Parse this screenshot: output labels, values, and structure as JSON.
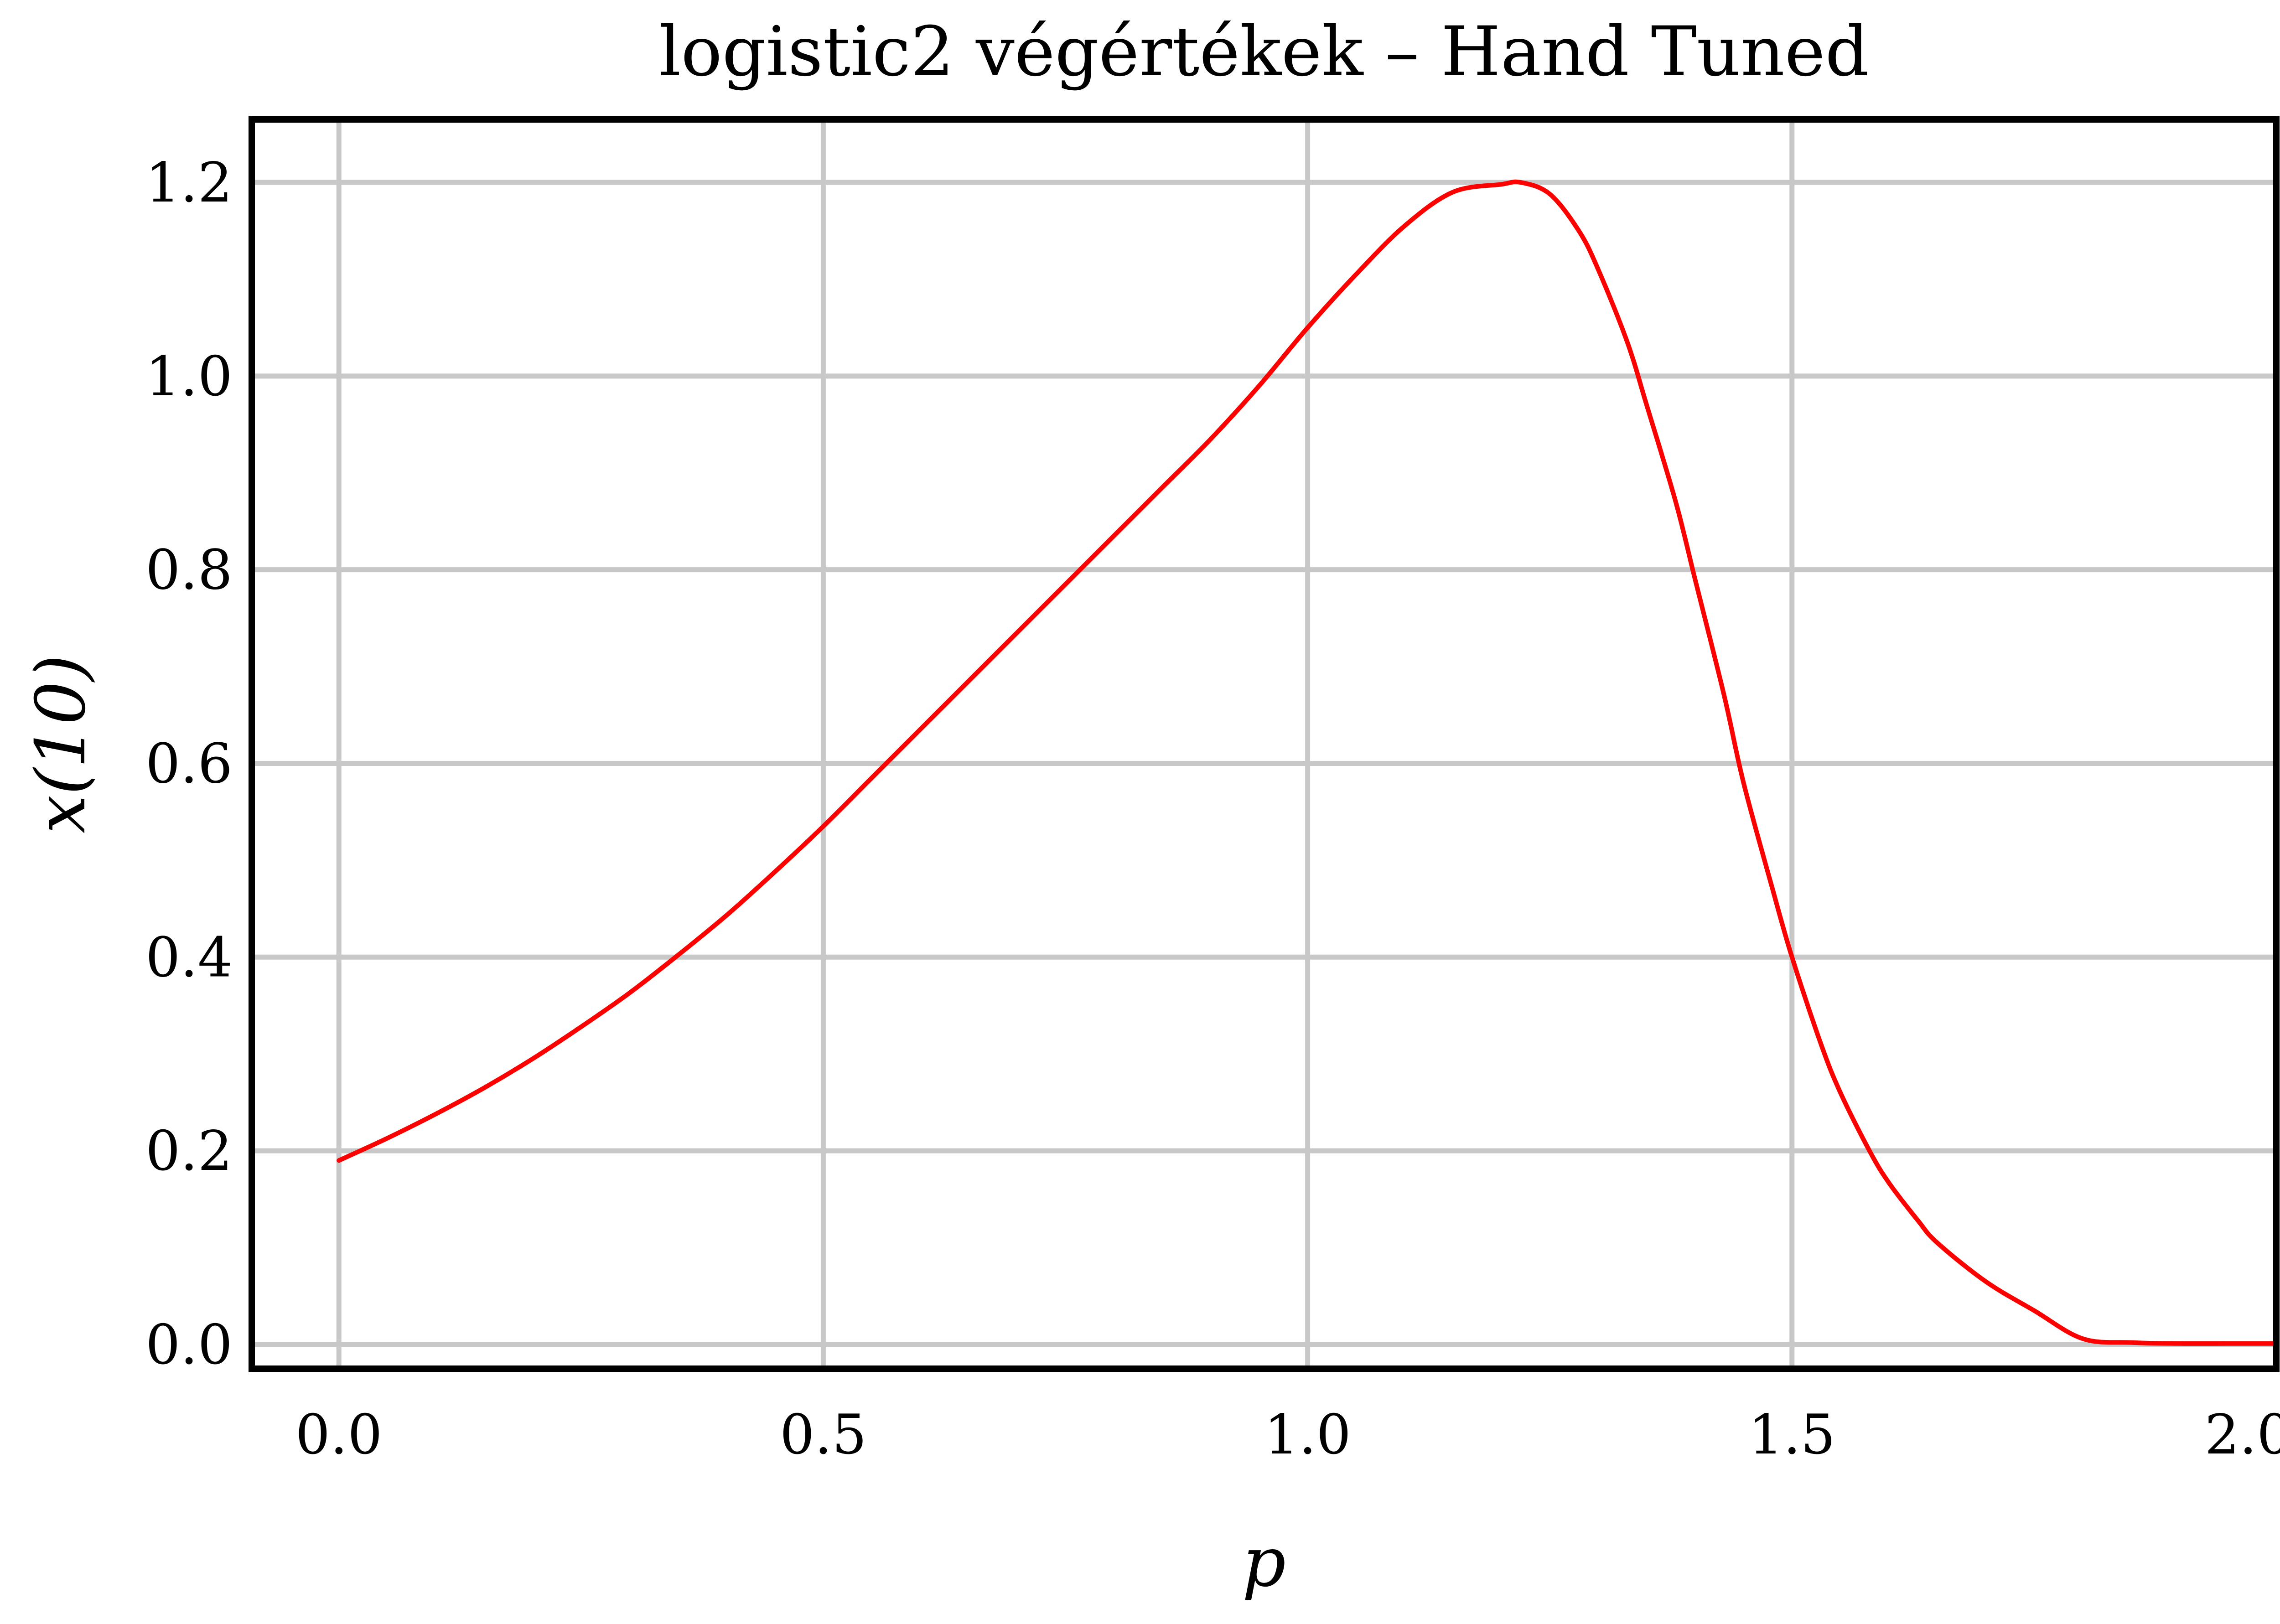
{
  "chart_data": {
    "type": "line",
    "title": "logistic2 végértékek – Hand Tuned",
    "xlabel": "p",
    "ylabel": "x(10)",
    "xlim": [
      -0.09,
      2.0
    ],
    "ylim": [
      -0.025,
      1.265
    ],
    "grid": true,
    "x_ticks": [
      0.0,
      0.5,
      1.0,
      1.5,
      2.0
    ],
    "x_tick_labels": [
      "0.0",
      "0.5",
      "1.0",
      "1.5",
      "2.0"
    ],
    "y_ticks": [
      0.0,
      0.2,
      0.4,
      0.6,
      0.8,
      1.0,
      1.2
    ],
    "y_tick_labels": [
      "0.0",
      "0.2",
      "0.4",
      "0.6",
      "0.8",
      "1.0",
      "1.2"
    ],
    "series": [
      {
        "color": "#ff0000",
        "x": [
          0.0,
          0.05,
          0.1,
          0.15,
          0.2,
          0.25,
          0.3,
          0.35,
          0.4,
          0.45,
          0.5,
          0.55,
          0.6,
          0.65,
          0.7,
          0.75,
          0.8,
          0.85,
          0.9,
          0.95,
          1.0,
          1.05,
          1.1,
          1.15,
          1.2,
          1.22,
          1.25,
          1.28,
          1.3,
          1.33,
          1.35,
          1.38,
          1.4,
          1.43,
          1.45,
          1.48,
          1.5,
          1.53,
          1.55,
          1.58,
          1.6,
          1.63,
          1.65,
          1.7,
          1.75,
          1.8,
          1.85,
          1.9,
          1.95,
          2.0
        ],
        "y": [
          0.19,
          0.213,
          0.238,
          0.265,
          0.295,
          0.328,
          0.363,
          0.402,
          0.443,
          0.488,
          0.535,
          0.585,
          0.635,
          0.685,
          0.735,
          0.785,
          0.835,
          0.885,
          0.935,
          0.99,
          1.05,
          1.105,
          1.155,
          1.19,
          1.198,
          1.2,
          1.188,
          1.15,
          1.11,
          1.035,
          0.97,
          0.87,
          0.79,
          0.67,
          0.58,
          0.47,
          0.4,
          0.31,
          0.26,
          0.2,
          0.167,
          0.128,
          0.105,
          0.065,
          0.035,
          0.006,
          0.002,
          0.001,
          0.001,
          0.001
        ]
      }
    ]
  }
}
